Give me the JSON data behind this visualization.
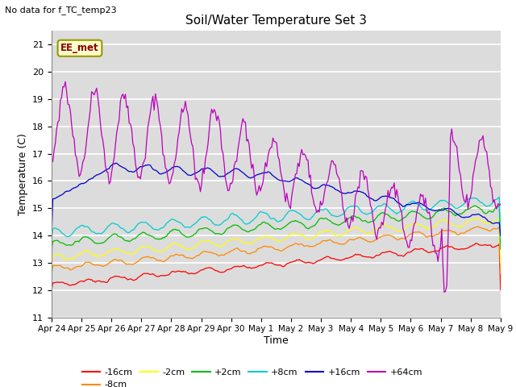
{
  "title": "Soil/Water Temperature Set 3",
  "xlabel": "Time",
  "ylabel": "Temperature (C)",
  "ylim": [
    11.0,
    21.5
  ],
  "yticks": [
    11.0,
    12.0,
    13.0,
    14.0,
    15.0,
    16.0,
    17.0,
    18.0,
    19.0,
    20.0,
    21.0
  ],
  "background_color": "#dcdcdc",
  "plot_bg_color": "#dcdcdc",
  "no_data_text": "No data for f_TC_temp23",
  "ee_met_label": "EE_met",
  "series_labels": [
    "-16cm",
    "-8cm",
    "-2cm",
    "+2cm",
    "+8cm",
    "+16cm",
    "+64cm"
  ],
  "series_colors": [
    "#ff0000",
    "#ff8800",
    "#ffff00",
    "#00bb00",
    "#00cccc",
    "#0000cc",
    "#bb00bb"
  ],
  "x_tick_labels": [
    "Apr 24",
    "Apr 25",
    "Apr 26",
    "Apr 27",
    "Apr 28",
    "Apr 29",
    "Apr 30",
    "May 1",
    "May 2",
    "May 3",
    "May 4",
    "May 5",
    "May 6",
    "May 7",
    "May 8",
    "May 9"
  ],
  "n_points": 360
}
